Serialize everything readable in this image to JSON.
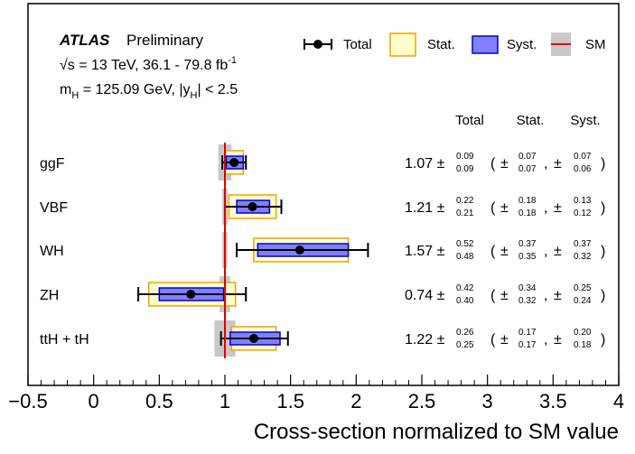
{
  "chart_data": {
    "type": "scatter",
    "title": "ATLAS",
    "subtitle": "Preliminary",
    "annotations": {
      "line1_prefix": "√s = 13 TeV, 36.1 - 79.8 fb",
      "line1_sup": "-1",
      "line2_main": "m",
      "line2_sub": "H",
      "line2_mid": " = 125.09 GeV, |y",
      "line2_sub2": "H",
      "line2_end": "| < 2.5"
    },
    "xlabel": "Cross-section normalized to SM value",
    "xlim": [
      -0.5,
      4
    ],
    "xticks": [
      "−0.5",
      "0",
      "0.5",
      "1",
      "1.5",
      "2",
      "2.5",
      "3",
      "3.5",
      "4"
    ],
    "xtick_values": [
      -0.5,
      0,
      0.5,
      1,
      1.5,
      2,
      2.5,
      3,
      3.5,
      4
    ],
    "sm_value": 1,
    "legend": {
      "position": "top-right",
      "total": "Total",
      "stat": "Stat.",
      "syst": "Syst.",
      "sm": "SM"
    },
    "column_headers": {
      "total": "Total",
      "stat": "Stat.",
      "syst": "Syst."
    },
    "colors": {
      "stat_fill": "#ffffcc",
      "stat_edge": "#f2a100",
      "syst_fill": "#8080ff",
      "syst_edge": "#0000cc",
      "sm_line": "#e00000",
      "sm_band": "#c8c8c8"
    },
    "series": [
      {
        "name": "ggF",
        "value": 1.07,
        "value_text": "1.07",
        "total_up": 0.09,
        "total_dn": 0.09,
        "total_up_text": "0.09",
        "total_dn_text": "0.09",
        "stat_up": 0.07,
        "stat_dn": 0.07,
        "stat_up_text": "0.07",
        "stat_dn_text": "0.07",
        "syst_up": 0.07,
        "syst_dn": 0.06,
        "syst_up_text": "0.07",
        "syst_dn_text": "0.06",
        "sm_unc": 0.05
      },
      {
        "name": "VBF",
        "value": 1.21,
        "value_text": "1.21",
        "total_up": 0.22,
        "total_dn": 0.21,
        "total_up_text": "0.22",
        "total_dn_text": "0.21",
        "stat_up": 0.18,
        "stat_dn": 0.18,
        "stat_up_text": "0.18",
        "stat_dn_text": "0.18",
        "syst_up": 0.13,
        "syst_dn": 0.12,
        "syst_up_text": "0.13",
        "syst_dn_text": "0.12",
        "sm_unc": 0.02
      },
      {
        "name": "WH",
        "value": 1.57,
        "value_text": "1.57",
        "total_up": 0.52,
        "total_dn": 0.48,
        "total_up_text": "0.52",
        "total_dn_text": "0.48",
        "stat_up": 0.37,
        "stat_dn": 0.35,
        "stat_up_text": "0.37",
        "stat_dn_text": "0.35",
        "syst_up": 0.37,
        "syst_dn": 0.32,
        "syst_up_text": "0.37",
        "syst_dn_text": "0.32",
        "sm_unc": 0.02
      },
      {
        "name": "ZH",
        "value": 0.74,
        "value_text": "0.74",
        "total_up": 0.42,
        "total_dn": 0.4,
        "total_up_text": "0.42",
        "total_dn_text": "0.40",
        "stat_up": 0.34,
        "stat_dn": 0.32,
        "stat_up_text": "0.34",
        "stat_dn_text": "0.32",
        "syst_up": 0.25,
        "syst_dn": 0.24,
        "syst_up_text": "0.25",
        "syst_dn_text": "0.24",
        "sm_unc": 0.04
      },
      {
        "name": "ttH + tH",
        "value": 1.22,
        "value_text": "1.22",
        "total_up": 0.26,
        "total_dn": 0.25,
        "total_up_text": "0.26",
        "total_dn_text": "0.25",
        "stat_up": 0.17,
        "stat_dn": 0.17,
        "stat_up_text": "0.17",
        "stat_dn_text": "0.17",
        "syst_up": 0.2,
        "syst_dn": 0.18,
        "syst_up_text": "0.20",
        "syst_dn_text": "0.18",
        "sm_unc": 0.08
      }
    ],
    "symbols": {
      "pm": "±",
      "open": "(",
      "close": ")",
      "comma": ","
    }
  }
}
